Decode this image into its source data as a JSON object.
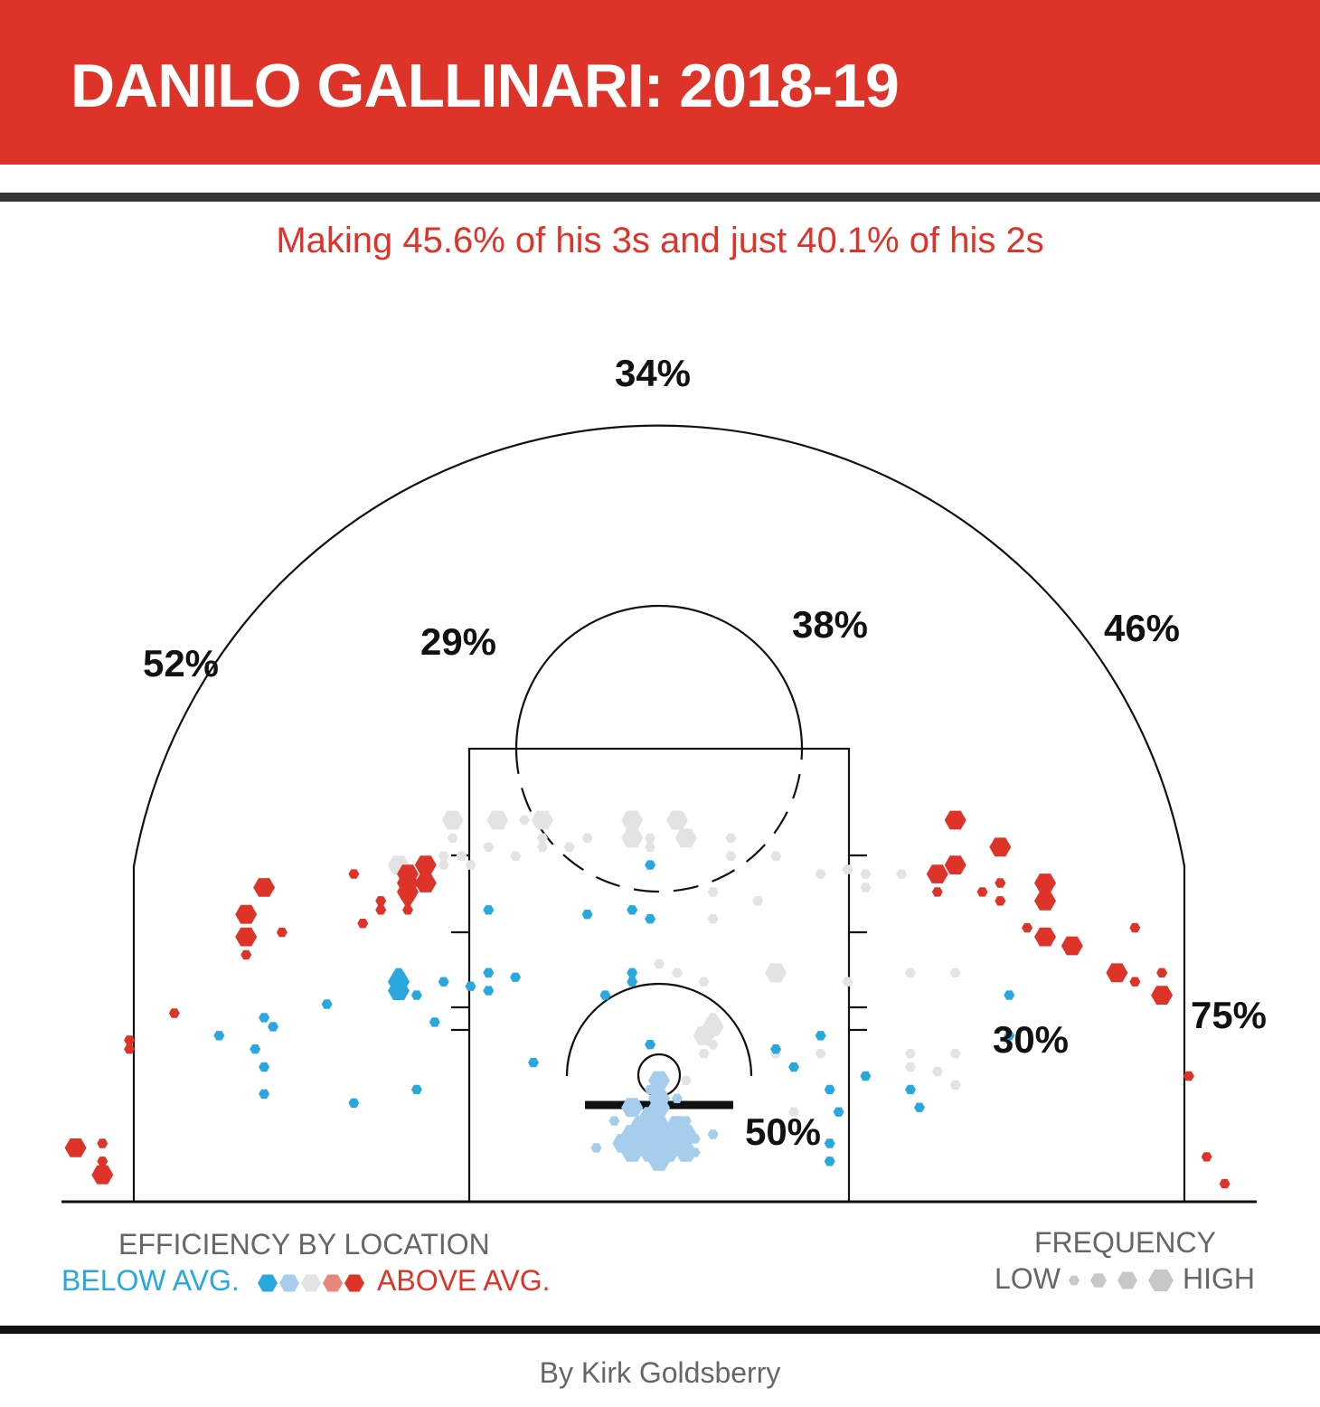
{
  "header": {
    "title": "DANILO GALLINARI: 2018-19",
    "subtitle": "Making 45.6% of his 3s and just 40.1% of his 2s"
  },
  "colors": {
    "brand_red": "#dd3328",
    "below_avg": "#29a8e0",
    "below_avg_light": "#a7cdec",
    "average": "#e3e3e3",
    "above_avg_light": "#e8887c",
    "above_avg": "#dd3328"
  },
  "chart_data": {
    "type": "scatter",
    "zones": [
      {
        "id": "top-three",
        "label": "34%",
        "fg_pct": 34
      },
      {
        "id": "left-wing-three",
        "label": "52%",
        "fg_pct": 52
      },
      {
        "id": "left-midrange",
        "label": "29%",
        "fg_pct": 29
      },
      {
        "id": "right-elbow",
        "label": "38%",
        "fg_pct": 38
      },
      {
        "id": "right-wing-three",
        "label": "46%",
        "fg_pct": 46
      },
      {
        "id": "right-midrange",
        "label": "30%",
        "fg_pct": 30
      },
      {
        "id": "right-corner-three",
        "label": "75%",
        "fg_pct": 75
      },
      {
        "id": "restricted-area",
        "label": "50%",
        "fg_pct": 50
      }
    ],
    "shots": [
      [
        -23,
        42.5,
        2,
        "a"
      ],
      [
        -18,
        42.5,
        2,
        "a"
      ],
      [
        -15,
        42.5,
        1,
        "a"
      ],
      [
        -13,
        42.5,
        2,
        "a"
      ],
      [
        -3,
        42.5,
        2,
        "a"
      ],
      [
        2,
        42.5,
        2,
        "a"
      ],
      [
        -23,
        40.5,
        1,
        "a"
      ],
      [
        -13,
        40.5,
        1,
        "a"
      ],
      [
        -8,
        40.5,
        1,
        "a"
      ],
      [
        -3,
        40.5,
        2,
        "a"
      ],
      [
        -1,
        40.5,
        1,
        "a"
      ],
      [
        3,
        40.5,
        2,
        "a"
      ],
      [
        8,
        40.5,
        1,
        "a"
      ],
      [
        -19,
        39.5,
        1,
        "a"
      ],
      [
        -13,
        39.5,
        1,
        "a"
      ],
      [
        -10,
        39.5,
        1,
        "a"
      ],
      [
        -1,
        39.5,
        1,
        "a"
      ],
      [
        -22,
        38.5,
        1,
        "a"
      ],
      [
        -24,
        38.5,
        1,
        "a"
      ],
      [
        -16,
        38.5,
        1,
        "a"
      ],
      [
        8,
        38.5,
        1,
        "a"
      ],
      [
        13,
        38.5,
        1,
        "a"
      ],
      [
        -29,
        37.5,
        2,
        "a"
      ],
      [
        -24,
        37.5,
        1,
        "a"
      ],
      [
        -21,
        37.5,
        1,
        "a"
      ],
      [
        18,
        36.5,
        1,
        "a"
      ],
      [
        21,
        37,
        1,
        "a"
      ],
      [
        23,
        36.5,
        1,
        "a"
      ],
      [
        23,
        35,
        1,
        "a"
      ],
      [
        27,
        36.5,
        1,
        "a"
      ],
      [
        6,
        34.5,
        1,
        "a"
      ],
      [
        11,
        33.5,
        1,
        "a"
      ],
      [
        6,
        31.5,
        1,
        "a"
      ],
      [
        0,
        26.5,
        1,
        "a"
      ],
      [
        2,
        25.5,
        1,
        "a"
      ],
      [
        5,
        24.5,
        1,
        "a"
      ],
      [
        13,
        25.5,
        2,
        "a"
      ],
      [
        21,
        24.5,
        1,
        "a"
      ],
      [
        28,
        25.5,
        1,
        "a"
      ],
      [
        33,
        25.5,
        1,
        "a"
      ],
      [
        6,
        20.5,
        1,
        "a"
      ],
      [
        6,
        19.5,
        2,
        "a"
      ],
      [
        5,
        18.5,
        2,
        "a"
      ],
      [
        6,
        17.5,
        1,
        "a"
      ],
      [
        5,
        16.5,
        1,
        "a"
      ],
      [
        13,
        16.5,
        1,
        "a"
      ],
      [
        18,
        16.5,
        1,
        "a"
      ],
      [
        28,
        16.5,
        1,
        "a"
      ],
      [
        33,
        16.5,
        1,
        "a"
      ],
      [
        28,
        15,
        1,
        "a"
      ],
      [
        31,
        14.5,
        1,
        "a"
      ],
      [
        33,
        13,
        1,
        "a"
      ],
      [
        3,
        13.5,
        1,
        "a"
      ],
      [
        15,
        10,
        1,
        "a"
      ],
      [
        -34,
        36.5,
        1,
        "r"
      ],
      [
        -26,
        37.5,
        2,
        "r"
      ],
      [
        -28,
        36.5,
        2,
        "r"
      ],
      [
        -28,
        35.5,
        2,
        "r"
      ],
      [
        -26,
        35.5,
        2,
        "r"
      ],
      [
        -28,
        34.5,
        2,
        "r"
      ],
      [
        -44,
        35,
        2,
        "r"
      ],
      [
        -46,
        32,
        2,
        "r"
      ],
      [
        -46,
        29.5,
        2,
        "r"
      ],
      [
        -46,
        27.5,
        1,
        "r"
      ],
      [
        -42,
        30,
        1,
        "r"
      ],
      [
        -28,
        33.5,
        1,
        "r"
      ],
      [
        -31,
        33.5,
        1,
        "r"
      ],
      [
        -31,
        32.5,
        1,
        "r"
      ],
      [
        -28,
        32.5,
        1,
        "r"
      ],
      [
        -33,
        31,
        1,
        "r"
      ],
      [
        -54,
        21,
        1,
        "r"
      ],
      [
        -59,
        18,
        1,
        "r"
      ],
      [
        -59,
        17,
        1,
        "r"
      ],
      [
        -65,
        6,
        2,
        "r"
      ],
      [
        -62,
        6.5,
        1,
        "r"
      ],
      [
        -62,
        4.5,
        1,
        "r"
      ],
      [
        -62,
        3,
        2,
        "r"
      ],
      [
        33,
        42.5,
        2,
        "r"
      ],
      [
        38,
        39.5,
        2,
        "r"
      ],
      [
        33,
        37.5,
        2,
        "r"
      ],
      [
        31,
        36.5,
        2,
        "r"
      ],
      [
        31,
        34.5,
        1,
        "r"
      ],
      [
        36,
        34.5,
        1,
        "r"
      ],
      [
        38,
        35.5,
        1,
        "r"
      ],
      [
        43,
        35.5,
        2,
        "r"
      ],
      [
        43,
        33.5,
        2,
        "r"
      ],
      [
        38,
        33.5,
        1,
        "r"
      ],
      [
        41,
        30.5,
        1,
        "r"
      ],
      [
        43,
        29.5,
        2,
        "r"
      ],
      [
        46,
        28.5,
        2,
        "r"
      ],
      [
        53,
        30.5,
        1,
        "r"
      ],
      [
        51,
        25.5,
        2,
        "r"
      ],
      [
        53,
        24.5,
        1,
        "r"
      ],
      [
        56,
        25.5,
        1,
        "r"
      ],
      [
        56,
        23,
        2,
        "r"
      ],
      [
        59,
        14,
        1,
        "r"
      ],
      [
        61,
        5,
        1,
        "r"
      ],
      [
        63,
        2,
        1,
        "r"
      ],
      [
        -1,
        37.5,
        1,
        "b"
      ],
      [
        -19,
        32.5,
        1,
        "b"
      ],
      [
        -8,
        32,
        1,
        "b"
      ],
      [
        -3,
        32.5,
        1,
        "b"
      ],
      [
        -1,
        31.5,
        1,
        "b"
      ],
      [
        -29,
        25.5,
        1,
        "b"
      ],
      [
        -19,
        25.5,
        1,
        "b"
      ],
      [
        -16,
        25,
        1,
        "b"
      ],
      [
        -3,
        25.5,
        1,
        "b"
      ],
      [
        -3,
        24.5,
        1,
        "b"
      ],
      [
        -29,
        24.5,
        2,
        "b"
      ],
      [
        -24,
        24.5,
        1,
        "b"
      ],
      [
        -21,
        24,
        1,
        "b"
      ],
      [
        -19,
        23.5,
        1,
        "b"
      ],
      [
        -29,
        23.5,
        2,
        "b"
      ],
      [
        -27,
        23,
        1,
        "b"
      ],
      [
        -6,
        23,
        1,
        "b"
      ],
      [
        -37,
        22,
        1,
        "b"
      ],
      [
        -44,
        20.5,
        1,
        "b"
      ],
      [
        -43,
        19.5,
        1,
        "b"
      ],
      [
        -49,
        18.5,
        1,
        "b"
      ],
      [
        -45,
        17,
        1,
        "b"
      ],
      [
        -44,
        15,
        1,
        "b"
      ],
      [
        -44,
        12,
        1,
        "b"
      ],
      [
        -34,
        11,
        1,
        "b"
      ],
      [
        -25,
        20,
        1,
        "b"
      ],
      [
        -27,
        12.5,
        1,
        "b"
      ],
      [
        -14,
        15.5,
        1,
        "b"
      ],
      [
        -1,
        17.5,
        1,
        "b"
      ],
      [
        18,
        18.5,
        1,
        "b"
      ],
      [
        13,
        17,
        1,
        "b"
      ],
      [
        15,
        15,
        1,
        "b"
      ],
      [
        23,
        14,
        1,
        "b"
      ],
      [
        28,
        12.5,
        1,
        "b"
      ],
      [
        29,
        10.5,
        1,
        "b"
      ],
      [
        39,
        23,
        1,
        "b"
      ],
      [
        39,
        18.5,
        1,
        "b"
      ],
      [
        19,
        12.5,
        1,
        "b"
      ],
      [
        19,
        6.5,
        1,
        "b"
      ],
      [
        19,
        4.5,
        1,
        "b"
      ],
      [
        20,
        10,
        1,
        "b"
      ],
      [
        0,
        13.5,
        2,
        "l"
      ],
      [
        -1,
        12.5,
        1,
        "l"
      ],
      [
        0,
        11.5,
        2,
        "l"
      ],
      [
        2,
        11.5,
        1,
        "l"
      ],
      [
        -3,
        11,
        1,
        "l"
      ],
      [
        0,
        10.5,
        2,
        "l"
      ],
      [
        -1,
        9.5,
        2,
        "l"
      ],
      [
        -3,
        10.5,
        2,
        "l"
      ],
      [
        -5,
        9,
        1,
        "l"
      ],
      [
        3,
        9,
        1,
        "l"
      ],
      [
        -2,
        8.5,
        2,
        "l"
      ],
      [
        0,
        8.5,
        2,
        "l"
      ],
      [
        2,
        8.5,
        2,
        "l"
      ],
      [
        -3,
        7.5,
        2,
        "l"
      ],
      [
        -1,
        7.5,
        2,
        "l"
      ],
      [
        1,
        7.5,
        2,
        "l"
      ],
      [
        3,
        7.5,
        2,
        "l"
      ],
      [
        -4,
        6.5,
        2,
        "l"
      ],
      [
        -2,
        6.5,
        2,
        "l"
      ],
      [
        0,
        6.5,
        2,
        "l"
      ],
      [
        2,
        6.5,
        2,
        "l"
      ],
      [
        -3,
        5.5,
        2,
        "l"
      ],
      [
        -1,
        5.5,
        2,
        "l"
      ],
      [
        1,
        5.5,
        2,
        "l"
      ],
      [
        3,
        5.5,
        2,
        "l"
      ],
      [
        0,
        4.5,
        2,
        "l"
      ],
      [
        3,
        8,
        1,
        "l"
      ],
      [
        4,
        7,
        1,
        "l"
      ],
      [
        6,
        7.5,
        1,
        "l"
      ],
      [
        4,
        5.5,
        1,
        "l"
      ],
      [
        -7,
        6,
        1,
        "l"
      ]
    ]
  },
  "legend": {
    "efficiency_title": "EFFICIENCY BY LOCATION",
    "below_label": "BELOW AVG.",
    "above_label": "ABOVE AVG.",
    "frequency_title": "FREQUENCY",
    "low_label": "LOW",
    "high_label": "HIGH"
  },
  "footer": {
    "byline": "By Kirk Goldsberry"
  }
}
